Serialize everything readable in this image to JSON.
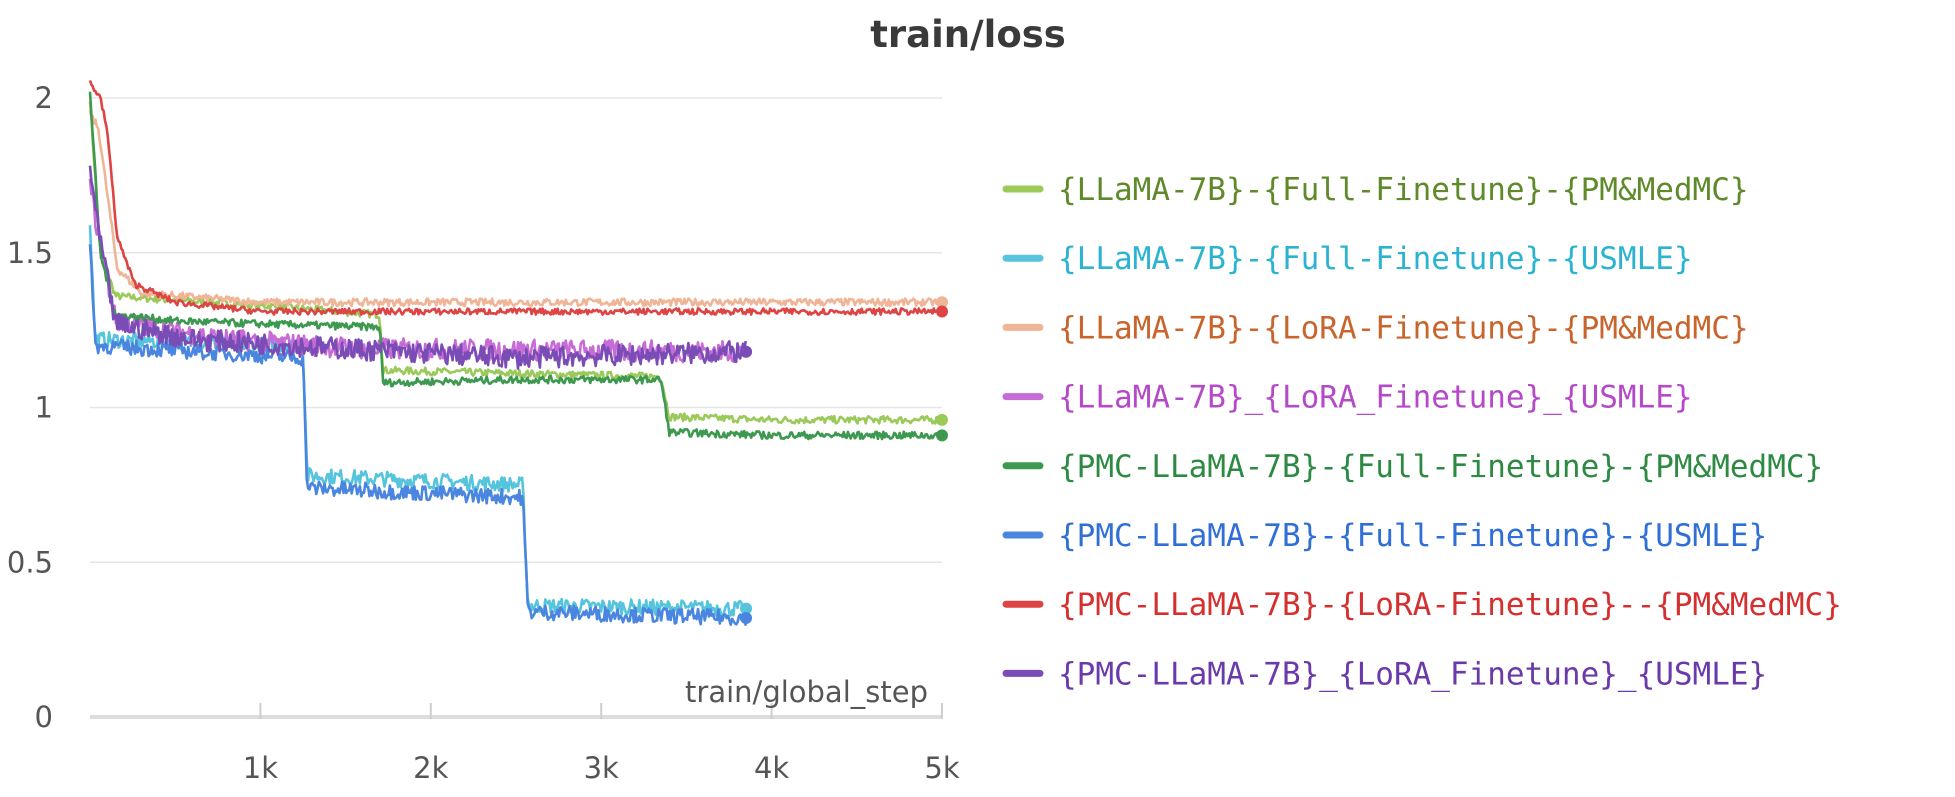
{
  "chart_data": {
    "type": "line",
    "title": "train/loss",
    "xlabel": "train/global_step",
    "ylabel": "",
    "xlim": [
      0,
      5000
    ],
    "ylim": [
      0,
      2.0
    ],
    "x_ticks": [
      {
        "value": 1000,
        "label": "1k"
      },
      {
        "value": 2000,
        "label": "2k"
      },
      {
        "value": 3000,
        "label": "3k"
      },
      {
        "value": 4000,
        "label": "4k"
      },
      {
        "value": 5000,
        "label": "5k"
      }
    ],
    "y_ticks": [
      {
        "value": 0,
        "label": "0"
      },
      {
        "value": 0.5,
        "label": "0.5"
      },
      {
        "value": 1,
        "label": "1"
      },
      {
        "value": 1.5,
        "label": "1.5"
      },
      {
        "value": 2,
        "label": "2"
      }
    ],
    "grid": true,
    "legend_position": "right",
    "series": [
      {
        "name": "{LLaMA-7B}-{Full-Finetune}-{PM&MedMC}",
        "color": "#9bc95a",
        "text_color": "#5f8a2a",
        "points": [
          [
            0,
            2.0
          ],
          [
            60,
            1.5
          ],
          [
            150,
            1.36
          ],
          [
            400,
            1.35
          ],
          [
            1000,
            1.33
          ],
          [
            1700,
            1.3
          ],
          [
            1720,
            1.12
          ],
          [
            2500,
            1.11
          ],
          [
            3350,
            1.1
          ],
          [
            3400,
            0.97
          ],
          [
            4000,
            0.96
          ],
          [
            5000,
            0.96
          ]
        ],
        "noise": 0.012
      },
      {
        "name": "{LLaMA-7B}-{Full-Finetune}-{USMLE}",
        "color": "#55c4dc",
        "text_color": "#2bb3d1",
        "points": [
          [
            0,
            1.6
          ],
          [
            30,
            1.22
          ],
          [
            1250,
            1.2
          ],
          [
            1275,
            0.78
          ],
          [
            2540,
            0.75
          ],
          [
            2570,
            0.36
          ],
          [
            3850,
            0.35
          ]
        ],
        "noise": 0.025
      },
      {
        "name": "{LLaMA-7B}-{LoRA-Finetune}-{PM&MedMC}",
        "color": "#f0b496",
        "text_color": "#c8642c",
        "points": [
          [
            0,
            1.95
          ],
          [
            50,
            1.9
          ],
          [
            160,
            1.45
          ],
          [
            300,
            1.37
          ],
          [
            1000,
            1.34
          ],
          [
            5000,
            1.34
          ]
        ],
        "noise": 0.012
      },
      {
        "name": "{LLaMA-7B}_{LoRA_Finetune}_{USMLE}",
        "color": "#c76bd6",
        "text_color": "#b44ac8",
        "points": [
          [
            0,
            1.72
          ],
          [
            50,
            1.55
          ],
          [
            150,
            1.28
          ],
          [
            800,
            1.22
          ],
          [
            1600,
            1.19
          ],
          [
            3850,
            1.18
          ]
        ],
        "noise": 0.035
      },
      {
        "name": "{PMC-LLaMA-7B}-{Full-Finetune}-{PM&MedMC}",
        "color": "#3d9950",
        "text_color": "#2e8a43",
        "points": [
          [
            0,
            2.02
          ],
          [
            60,
            1.5
          ],
          [
            150,
            1.3
          ],
          [
            500,
            1.28
          ],
          [
            1000,
            1.27
          ],
          [
            1700,
            1.26
          ],
          [
            1720,
            1.08
          ],
          [
            2500,
            1.09
          ],
          [
            3350,
            1.09
          ],
          [
            3400,
            0.92
          ],
          [
            4000,
            0.91
          ],
          [
            5000,
            0.91
          ]
        ],
        "noise": 0.012
      },
      {
        "name": "{PMC-LLaMA-7B}-{Full-Finetune}-{USMLE}",
        "color": "#4a86e0",
        "text_color": "#2f6fd6",
        "points": [
          [
            0,
            1.55
          ],
          [
            30,
            1.2
          ],
          [
            1250,
            1.16
          ],
          [
            1275,
            0.74
          ],
          [
            2540,
            0.71
          ],
          [
            2570,
            0.34
          ],
          [
            3850,
            0.32
          ]
        ],
        "noise": 0.025
      },
      {
        "name": "{PMC-LLaMA-7B}-{LoRA-Finetune}--{PM&MedMC}",
        "color": "#dd4444",
        "text_color": "#d43030",
        "points": [
          [
            0,
            2.05
          ],
          [
            60,
            2.0
          ],
          [
            100,
            1.9
          ],
          [
            160,
            1.55
          ],
          [
            260,
            1.4
          ],
          [
            500,
            1.34
          ],
          [
            1000,
            1.31
          ],
          [
            5000,
            1.31
          ]
        ],
        "noise": 0.01
      },
      {
        "name": "{PMC-LLaMA-7B}_{LoRA_Finetune}_{USMLE}",
        "color": "#7a4cb5",
        "text_color": "#6a3aaa",
        "points": [
          [
            0,
            1.78
          ],
          [
            40,
            1.6
          ],
          [
            150,
            1.27
          ],
          [
            600,
            1.22
          ],
          [
            1500,
            1.19
          ],
          [
            2500,
            1.16
          ],
          [
            3850,
            1.18
          ]
        ],
        "noise": 0.035
      }
    ]
  }
}
